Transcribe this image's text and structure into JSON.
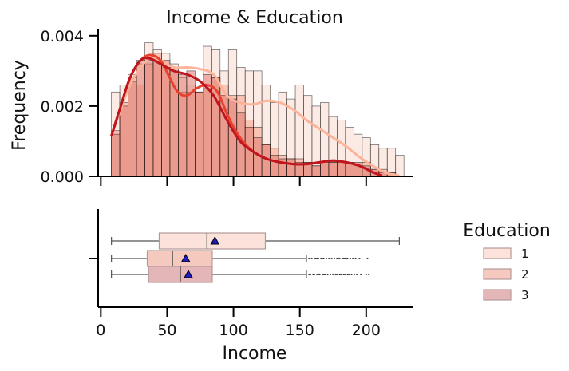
{
  "chart_data": [
    {
      "type": "histogram",
      "title": "Income & Education",
      "xlabel": "",
      "ylabel": "Frequency",
      "xlim": [
        -2,
        235
      ],
      "ylim": [
        0,
        0.0042
      ],
      "x_ticks": [
        0,
        50,
        100,
        150,
        200
      ],
      "y_ticks": [
        0.0,
        0.002,
        0.004
      ],
      "y_tick_labels": [
        "0.000",
        "0.002",
        "0.004"
      ],
      "bin_width": 6.3,
      "bin_start": 8,
      "series": [
        {
          "name": "1",
          "color": "#fbe3dc",
          "line_color": "#fcb39a",
          "bars": [
            0.0024,
            0.0026,
            0.0029,
            0.0032,
            0.0038,
            0.0036,
            0.0035,
            0.0032,
            0.0028,
            0.0026,
            0.0024,
            0.0037,
            0.0036,
            0.003,
            0.0036,
            0.0031,
            0.003,
            0.003,
            0.0026,
            0.0021,
            0.0024,
            0.0022,
            0.0026,
            0.0023,
            0.002,
            0.0021,
            0.0017,
            0.0016,
            0.0014,
            0.0012,
            0.0011,
            0.0009,
            0.0008,
            0.0008,
            0.0006
          ],
          "kde": [
            [
              8,
              0.00115
            ],
            [
              15,
              0.0019
            ],
            [
              22,
              0.0026
            ],
            [
              30,
              0.0031
            ],
            [
              37,
              0.00335
            ],
            [
              45,
              0.0033
            ],
            [
              55,
              0.0031
            ],
            [
              65,
              0.0031
            ],
            [
              75,
              0.00305
            ],
            [
              85,
              0.0029
            ],
            [
              95,
              0.0023
            ],
            [
              105,
              0.0021
            ],
            [
              115,
              0.00205
            ],
            [
              125,
              0.00215
            ],
            [
              135,
              0.0021
            ],
            [
              145,
              0.0019
            ],
            [
              155,
              0.0016
            ],
            [
              165,
              0.00135
            ],
            [
              175,
              0.0011
            ],
            [
              185,
              0.00085
            ],
            [
              195,
              0.00055
            ],
            [
              205,
              0.0003
            ],
            [
              215,
              0.0001
            ],
            [
              225,
              2e-05
            ]
          ]
        },
        {
          "name": "2",
          "color": "#f6a48d",
          "line_color": "#e8412f",
          "bars": [
            0.0013,
            0.0021,
            0.0028,
            0.0026,
            0.0032,
            0.0035,
            0.0031,
            0.0031,
            0.0024,
            0.0024,
            0.0024,
            0.0025,
            0.0028,
            0.0026,
            0.0023,
            0.0023,
            0.0016,
            0.0014,
            0.0009,
            0.0008,
            0.0006,
            0.0005,
            0.0005,
            0.0004,
            0.0003,
            0.0004,
            0.0004,
            0.0004,
            0.0004,
            0.0003,
            0.0004,
            0.0002,
            0.0002,
            0.0001,
            0.0
          ],
          "kde": [
            [
              8,
              0.00115
            ],
            [
              15,
              0.002
            ],
            [
              22,
              0.0028
            ],
            [
              30,
              0.0033
            ],
            [
              37,
              0.00345
            ],
            [
              45,
              0.0033
            ],
            [
              52,
              0.0028
            ],
            [
              58,
              0.0024
            ],
            [
              65,
              0.0023
            ],
            [
              72,
              0.0025
            ],
            [
              80,
              0.0026
            ],
            [
              88,
              0.0024
            ],
            [
              96,
              0.0017
            ],
            [
              105,
              0.0011
            ],
            [
              115,
              0.0007
            ],
            [
              125,
              0.0005
            ],
            [
              135,
              0.0004
            ],
            [
              145,
              0.00035
            ],
            [
              155,
              0.00035
            ],
            [
              165,
              0.0004
            ],
            [
              175,
              0.00045
            ],
            [
              185,
              0.0004
            ],
            [
              195,
              0.0003
            ],
            [
              205,
              0.00012
            ],
            [
              212,
              2e-05
            ]
          ]
        },
        {
          "name": "3",
          "color": "#e07a70",
          "line_color": "#c0141e",
          "bars": [
            0.0012,
            0.002,
            0.0027,
            0.0033,
            0.0033,
            0.0033,
            0.0033,
            0.003,
            0.0029,
            0.003,
            0.0024,
            0.0029,
            0.0028,
            0.0023,
            0.0022,
            0.0018,
            0.0014,
            0.0011,
            0.0009,
            0.0006,
            0.0005,
            0.0005,
            0.0004,
            0.0004,
            0.0003,
            0.0004,
            0.0004,
            0.0004,
            0.0004,
            0.0004,
            0.0003,
            0.0002,
            0.0001,
            0.0001,
            0.0
          ],
          "kde": [
            [
              8,
              0.00115
            ],
            [
              15,
              0.002
            ],
            [
              22,
              0.0028
            ],
            [
              30,
              0.0033
            ],
            [
              37,
              0.00335
            ],
            [
              45,
              0.0032
            ],
            [
              55,
              0.003
            ],
            [
              65,
              0.0029
            ],
            [
              75,
              0.0027
            ],
            [
              85,
              0.0023
            ],
            [
              95,
              0.0016
            ],
            [
              105,
              0.001
            ],
            [
              115,
              0.0007
            ],
            [
              125,
              0.0005
            ],
            [
              135,
              0.0004
            ],
            [
              145,
              0.00035
            ],
            [
              155,
              0.00035
            ],
            [
              165,
              0.0004
            ],
            [
              175,
              0.00045
            ],
            [
              185,
              0.0004
            ],
            [
              195,
              0.0003
            ],
            [
              205,
              0.00012
            ],
            [
              212,
              2e-05
            ]
          ]
        }
      ]
    },
    {
      "type": "box",
      "xlabel": "Income",
      "xlim": [
        -2,
        235
      ],
      "x_ticks": [
        0,
        50,
        100,
        150,
        200
      ],
      "series": [
        {
          "name": "1",
          "color": "#fbe3dc",
          "whisker_low": 8,
          "q1": 44,
          "median": 80,
          "q3": 124,
          "whisker_high": 225,
          "mean": 86,
          "outliers": []
        },
        {
          "name": "2",
          "color": "#f6c9bf",
          "whisker_low": 8,
          "q1": 35,
          "median": 54,
          "q3": 84,
          "whisker_high": 155,
          "mean": 64,
          "outliers": [
            157,
            159,
            161,
            162,
            163,
            164,
            166,
            167,
            168,
            170,
            172,
            174,
            176,
            178,
            179,
            180,
            182,
            183,
            184,
            185,
            186,
            188,
            190,
            192,
            195,
            201
          ]
        },
        {
          "name": "3",
          "color": "#e4b6b8",
          "whisker_low": 8,
          "q1": 36,
          "median": 60,
          "q3": 84,
          "whisker_high": 155,
          "mean": 66,
          "outliers": [
            157,
            158,
            160,
            161,
            163,
            164,
            165,
            167,
            168,
            169,
            171,
            173,
            175,
            177,
            178,
            180,
            181,
            183,
            184,
            186,
            187,
            189,
            191,
            193,
            196,
            200,
            202
          ]
        }
      ]
    }
  ],
  "legend": {
    "title": "Education",
    "items": [
      {
        "label": "1",
        "color": "#fbe3dc"
      },
      {
        "label": "2",
        "color": "#f6c9bf"
      },
      {
        "label": "3",
        "color": "#e4b6b8"
      }
    ]
  }
}
